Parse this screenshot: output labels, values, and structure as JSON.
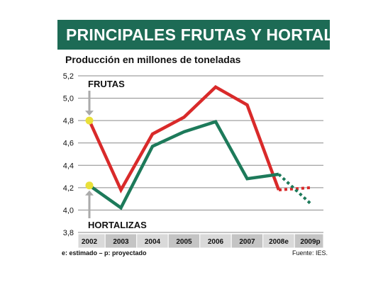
{
  "header": {
    "title": "PRINCIPALES FRUTAS Y HORTALIZAS",
    "subtitle": "Producción en millones de toneladas"
  },
  "footer": {
    "note": "e: estimado – p: proyectado",
    "source": "Fuente: IES."
  },
  "colors": {
    "frutas": "#d92a2a",
    "hortalizas": "#1d7a5a",
    "title_bg": "#1d6b55",
    "year_bar_odd": "#d9d9d9",
    "year_bar_even": "#c4c4c4",
    "marker_fill": "#e9e03a"
  },
  "chart_data": {
    "type": "line",
    "title": "PRINCIPALES FRUTAS Y HORTALIZAS",
    "subtitle": "Producción en millones de toneladas",
    "categories": [
      "2002",
      "2003",
      "2004",
      "2005",
      "2006",
      "2007",
      "2008e",
      "2009p"
    ],
    "ylim": [
      3.8,
      5.2
    ],
    "yticks": [
      "5,2",
      "5,0",
      "4,8",
      "4,6",
      "4,4",
      "4,2",
      "4,0",
      "3,8"
    ],
    "ytick_values": [
      5.2,
      5.0,
      4.8,
      4.6,
      4.4,
      4.2,
      4.0,
      3.8
    ],
    "grid": true,
    "series": [
      {
        "name": "FRUTAS",
        "values": [
          4.8,
          4.18,
          4.68,
          4.83,
          5.1,
          4.94,
          4.18,
          4.2
        ],
        "solid_until_index": 6
      },
      {
        "name": "HORTALIZAS",
        "values": [
          4.22,
          4.02,
          4.57,
          4.7,
          4.79,
          4.28,
          4.32,
          4.06
        ],
        "solid_until_index": 6
      }
    ]
  }
}
